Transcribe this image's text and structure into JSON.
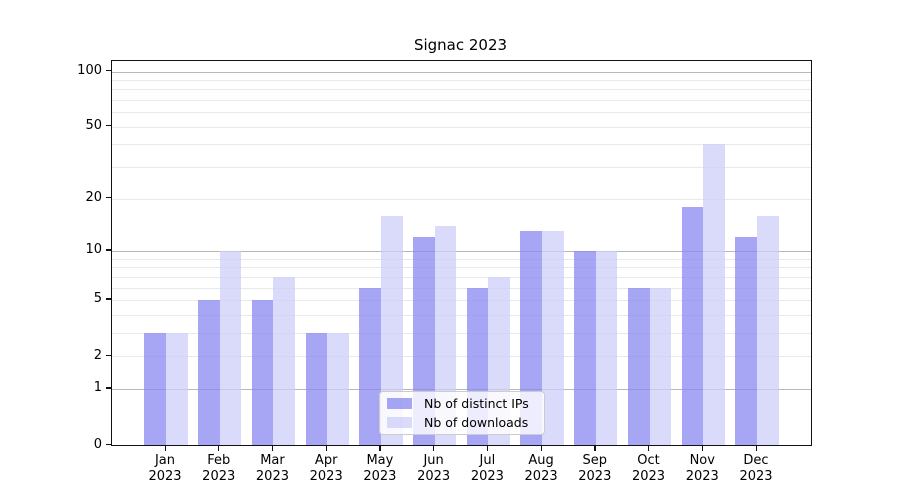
{
  "chart_data": {
    "type": "bar",
    "title": "Signac 2023",
    "categories": [
      "Jan 2023",
      "Feb 2023",
      "Mar 2023",
      "Apr 2023",
      "May 2023",
      "Jun 2023",
      "Jul 2023",
      "Aug 2023",
      "Sep 2023",
      "Oct 2023",
      "Nov 2023",
      "Dec 2023"
    ],
    "months": [
      "Jan",
      "Feb",
      "Mar",
      "Apr",
      "May",
      "Jun",
      "Jul",
      "Aug",
      "Sep",
      "Oct",
      "Nov",
      "Dec"
    ],
    "year": "2023",
    "series": [
      {
        "name": "Nb of distinct IPs",
        "color": "rgba(136,136,240,0.75)",
        "approx_hex": "#a6a6f0",
        "values": [
          3,
          5,
          5,
          3,
          6,
          12,
          6,
          13,
          10,
          6,
          18,
          12
        ]
      },
      {
        "name": "Nb of downloads",
        "color": "rgba(206,206,249,0.75)",
        "approx_hex": "#d9d9f8",
        "values": [
          3,
          10,
          7,
          3,
          16,
          14,
          7,
          13,
          10,
          6,
          40,
          16
        ]
      }
    ],
    "xlabel": "",
    "ylabel": "",
    "yscale": "log1p",
    "yticks": [
      100,
      50,
      20,
      10,
      5,
      2,
      1,
      0
    ],
    "major_gridlines": [
      1,
      10,
      100
    ],
    "minor_gridlines": [
      2,
      3,
      4,
      5,
      6,
      7,
      8,
      9,
      20,
      30,
      40,
      50,
      60,
      70,
      80,
      90
    ],
    "ylim": [
      0,
      114
    ],
    "grid": "horizontal",
    "legend_position": "lower center"
  },
  "colors": {
    "background": "#ffffff",
    "spine": "#111111",
    "major_grid": "#b8b8b8",
    "minor_grid": "#e9e9e9",
    "text": "#000000",
    "legend_border": "#cccccc",
    "legend_background": "rgba(255,255,255,0.8)"
  }
}
